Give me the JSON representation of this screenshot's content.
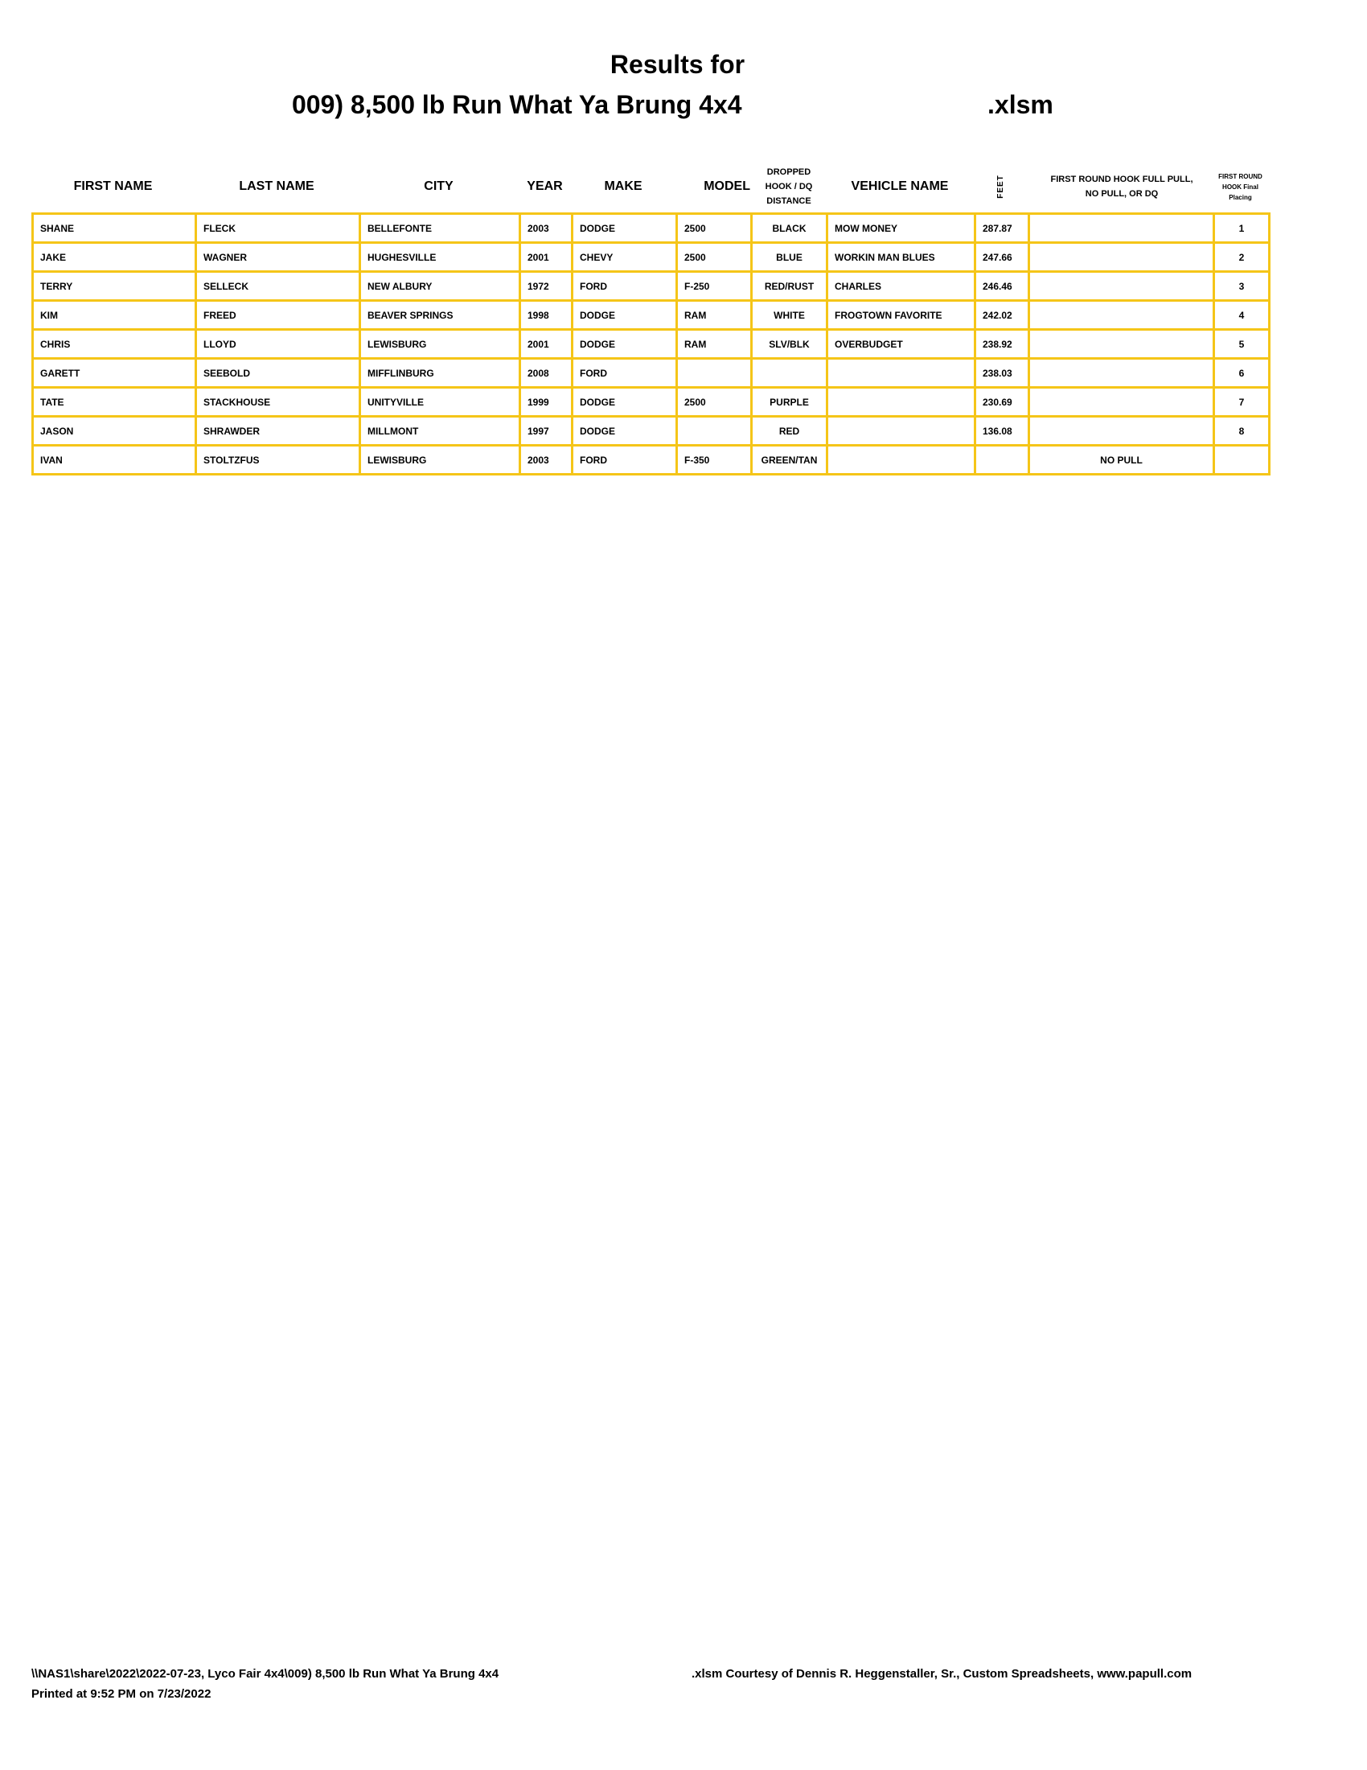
{
  "title": {
    "line1": "Results for",
    "class_name": "009) 8,500 lb Run What Ya Brung 4x4",
    "extension": ".xlsm"
  },
  "columns": [
    "FIRST NAME",
    "LAST NAME",
    "CITY",
    "YEAR",
    "MAKE",
    "MODEL",
    "DROPPED HOOK / DQ DISTANCE",
    "VEHICLE NAME",
    "FEET",
    "FIRST ROUND HOOK FULL PULL, NO PULL, OR DQ",
    "FIRST ROUND HOOK Final Placing"
  ],
  "rows": [
    [
      "SHANE",
      "FLECK",
      "BELLEFONTE",
      "2003",
      "DODGE",
      "2500",
      "BLACK",
      "MOW MONEY",
      "287.87",
      "",
      "1"
    ],
    [
      "JAKE",
      "WAGNER",
      "HUGHESVILLE",
      "2001",
      "CHEVY",
      "2500",
      "BLUE",
      "WORKIN MAN BLUES",
      "247.66",
      "",
      "2"
    ],
    [
      "TERRY",
      "SELLECK",
      "NEW ALBURY",
      "1972",
      "FORD",
      "F-250",
      "RED/RUST",
      "CHARLES",
      "246.46",
      "",
      "3"
    ],
    [
      "KIM",
      "FREED",
      "BEAVER SPRINGS",
      "1998",
      "DODGE",
      "RAM",
      "WHITE",
      "FROGTOWN FAVORITE",
      "242.02",
      "",
      "4"
    ],
    [
      "CHRIS",
      "LLOYD",
      "LEWISBURG",
      "2001",
      "DODGE",
      "RAM",
      "SLV/BLK",
      "OVERBUDGET",
      "238.92",
      "",
      "5"
    ],
    [
      "GARETT",
      "SEEBOLD",
      "MIFFLINBURG",
      "2008",
      "FORD",
      "",
      "",
      "",
      "238.03",
      "",
      "6"
    ],
    [
      "TATE",
      "STACKHOUSE",
      "UNITYVILLE",
      "1999",
      "DODGE",
      "2500",
      "PURPLE",
      "",
      "230.69",
      "",
      "7"
    ],
    [
      "JASON",
      "SHRAWDER",
      "MILLMONT",
      "1997",
      "DODGE",
      "",
      "RED",
      "",
      "136.08",
      "",
      "8"
    ],
    [
      "IVAN",
      "STOLTZFUS",
      "LEWISBURG",
      "2003",
      "FORD",
      "F-350",
      "GREEN/TAN",
      "",
      "",
      "NO PULL",
      ""
    ]
  ],
  "footer": {
    "path": "\\\\NAS1\\share\\2022\\2022-07-23, Lyco Fair 4x4\\009) 8,500 lb Run What Ya Brung 4x4",
    "courtesy": ".xlsm  Courtesy of Dennis R. Heggenstaller, Sr., Custom Spreadsheets, www.papull.com",
    "printed": "Printed at 9:52 PM on 7/23/2022"
  },
  "colors": {
    "grid": "#f5c518"
  }
}
